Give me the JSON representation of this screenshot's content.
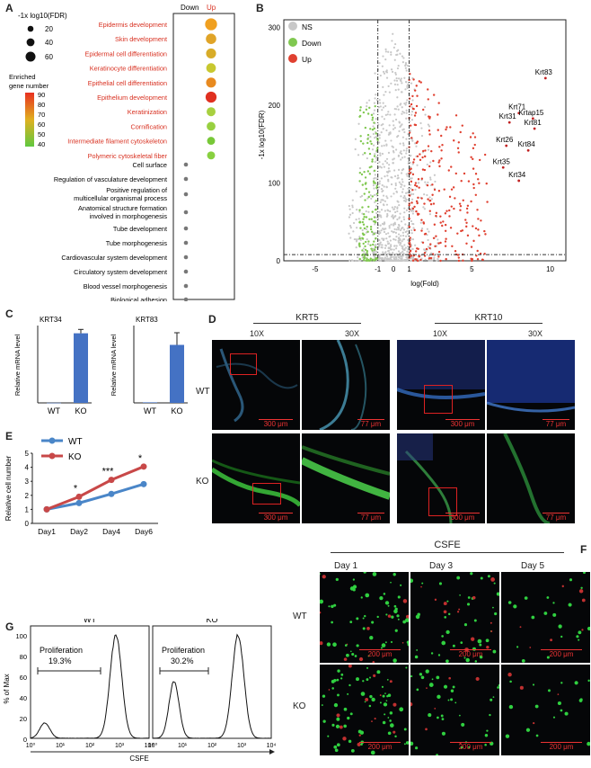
{
  "panel_letters": {
    "a": "A",
    "b": "B",
    "c": "C",
    "d": "D",
    "e": "E",
    "f": "F",
    "g": "G"
  },
  "panelA": {
    "size_title": "-1x log10(FDR)",
    "size_legend": [
      "20",
      "40",
      "60"
    ],
    "color_title_1": "Enriched",
    "color_title_2": "gene number",
    "color_ticks": [
      "90",
      "80",
      "70",
      "60",
      "50",
      "40"
    ],
    "header_down": "Down",
    "header_up": "Up",
    "terms_red": [
      "Epidermis development",
      "Skin development",
      "Epidermal cell differentiation",
      "Keratinocyte differentiation",
      "Epithelial cell differentiation",
      "Epithelium development",
      "Keratinization",
      "Cornification",
      "Intermediate filament cytoskeleton",
      "Polymeric cytoskeletal fiber"
    ],
    "terms_black": [
      "Cell surface",
      "Regulation of vasculature development",
      "Positive regulation of",
      "multicellular organismal process",
      "Anatomical structure formation",
      "involved in morphogenesis",
      "Tube development",
      "Tube morphogenesis",
      "Cardiovascular system development",
      "Circulatory system development",
      "Blood vessel morphogenesis",
      "Biological adhesion"
    ],
    "up_colors": [
      "#f0a020",
      "#e0a428",
      "#d8ac28",
      "#c8c830",
      "#e88a20",
      "#e03020",
      "#a8d040",
      "#98d040",
      "#78c838",
      "#88d040"
    ],
    "up_sizes": [
      60,
      52,
      50,
      48,
      50,
      55,
      45,
      44,
      40,
      40
    ]
  },
  "panelB": {
    "ylabel": "-1x log10(FDR)",
    "xlabel": "log(Fold)",
    "xticks": [
      "-5",
      "-1",
      "0",
      "1",
      "5",
      "10"
    ],
    "yticks": [
      "300",
      "200",
      "100",
      "0"
    ],
    "legend": [
      "NS",
      "Down",
      "Up"
    ],
    "colors": {
      "ns": "#c8c8c8",
      "down": "#80c850",
      "up": "#e04030"
    },
    "genes": [
      {
        "name": "Krt83",
        "x": 9.7,
        "y": 235
      },
      {
        "name": "Krt71",
        "x": 8.0,
        "y": 190
      },
      {
        "name": "Krtap15",
        "x": 8.9,
        "y": 183
      },
      {
        "name": "Krt31",
        "x": 7.4,
        "y": 178
      },
      {
        "name": "Krt81",
        "x": 9.0,
        "y": 170
      },
      {
        "name": "Krt26",
        "x": 7.2,
        "y": 148
      },
      {
        "name": "Krt84",
        "x": 8.6,
        "y": 142
      },
      {
        "name": "Krt35",
        "x": 7.0,
        "y": 120
      },
      {
        "name": "Krt34",
        "x": 8.0,
        "y": 103
      }
    ]
  },
  "panelC": {
    "ylabel": "Relative mRNA level",
    "charts": [
      {
        "title": "KRT34",
        "categories": [
          "WT",
          "KO"
        ],
        "values": [
          1,
          540
        ],
        "err": [
          0,
          30
        ]
      },
      {
        "title": "KRT83",
        "categories": [
          "WT",
          "KO"
        ],
        "values": [
          1,
          105
        ],
        "err": [
          0,
          22
        ]
      }
    ],
    "bar_color": "#4472c4"
  },
  "panelD": {
    "groups": [
      "KRT5",
      "KRT10"
    ],
    "mags": [
      "10X",
      "30X"
    ],
    "rows": [
      "WT",
      "KO"
    ],
    "scales": [
      "300 μm",
      "77 μm"
    ]
  },
  "chart_data": {
    "type": "line",
    "title": "",
    "ylabel": "Relative cell number",
    "categories": [
      "Day1",
      "Day2",
      "Day4",
      "Day6"
    ],
    "series": [
      {
        "name": "WT",
        "values": [
          1.0,
          1.45,
          2.1,
          2.8
        ],
        "color": "#4a86c8"
      },
      {
        "name": "KO",
        "values": [
          1.0,
          1.9,
          3.1,
          4.05
        ],
        "color": "#c84848"
      }
    ],
    "yticks": [
      "5",
      "4",
      "3",
      "2",
      "1",
      "0"
    ],
    "ylim": [
      0,
      5
    ],
    "significance": [
      "*",
      "***",
      "*"
    ]
  },
  "panelF": {
    "title": "CSFE",
    "days": [
      "Day 1",
      "Day 3",
      "Day 5"
    ],
    "rows": [
      "WT",
      "KO"
    ],
    "scale": "200 μm"
  },
  "panelG": {
    "ylabel": "% of Max",
    "xlabel": "CSFE",
    "yticks": [
      "100",
      "80",
      "60",
      "40",
      "20",
      "0"
    ],
    "plots": [
      {
        "title": "WT",
        "label": "Proliferation",
        "value": "19.3%"
      },
      {
        "title": "KO",
        "label": "Proliferation",
        "value": "30.2%"
      }
    ],
    "xticks": [
      "10⁰",
      "10¹",
      "10²",
      "10³",
      "10⁴"
    ]
  }
}
